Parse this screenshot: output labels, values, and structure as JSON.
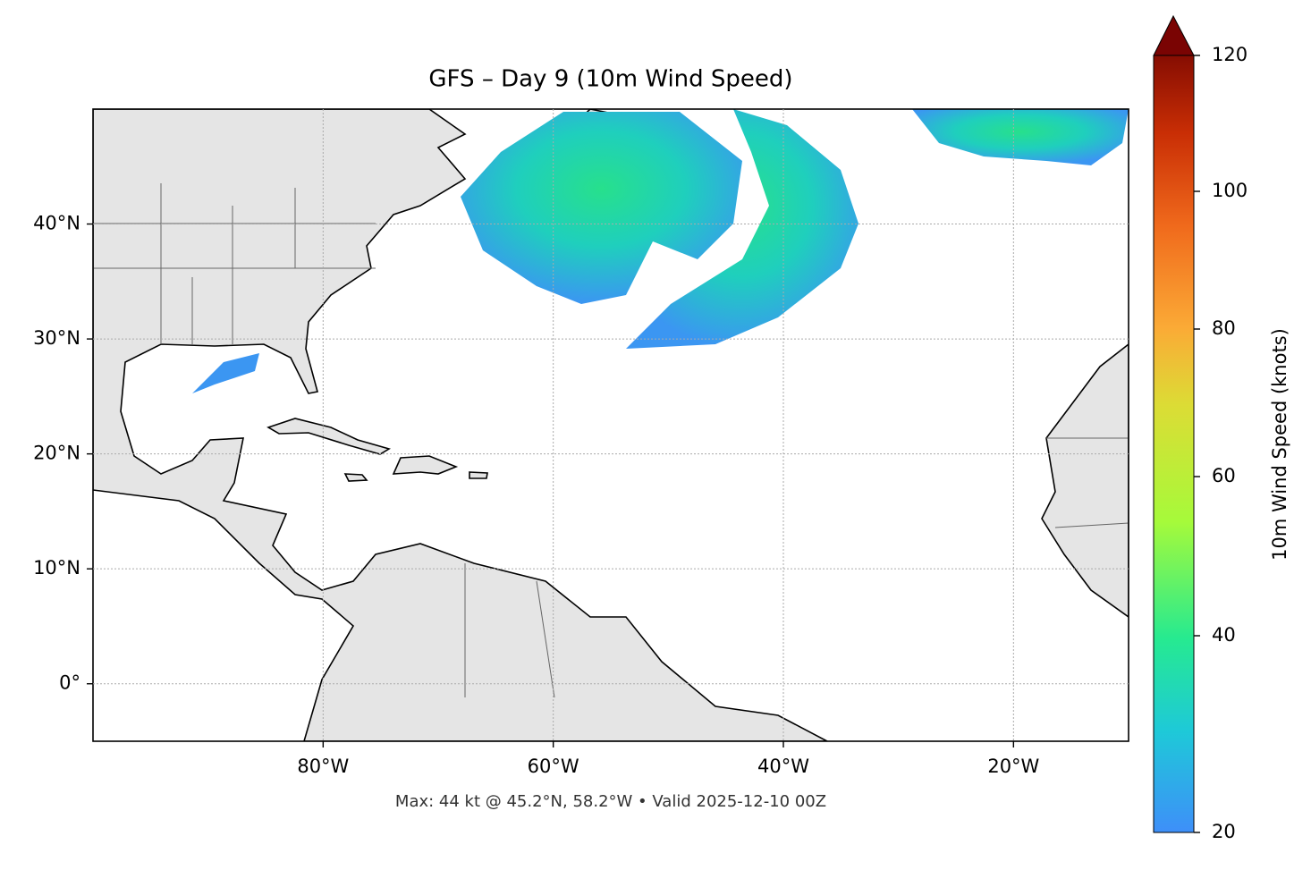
{
  "chart_data": {
    "type": "map",
    "title": "GFS – Day 9 (10m Wind Speed)",
    "footer": "Max: 44 kt @ 45.2°N, 58.2°W • Valid 2025-12-10 00Z",
    "xlim": [
      -100,
      -10
    ],
    "ylim": [
      -5,
      50
    ],
    "xticks": [
      {
        "value": -80,
        "label": "80°W"
      },
      {
        "value": -60,
        "label": "60°W"
      },
      {
        "value": -40,
        "label": "40°W"
      },
      {
        "value": -20,
        "label": "20°W"
      }
    ],
    "yticks": [
      {
        "value": 0,
        "label": "0°"
      },
      {
        "value": 10,
        "label": "10°N"
      },
      {
        "value": 20,
        "label": "20°N"
      },
      {
        "value": 30,
        "label": "30°N"
      },
      {
        "value": 40,
        "label": "40°N"
      }
    ],
    "grid": true,
    "colorbar": {
      "label": "10m Wind Speed (knots)",
      "lim": [
        20,
        120
      ],
      "ticks": [
        20,
        40,
        60,
        80,
        100,
        120
      ],
      "extend": "max"
    }
  }
}
